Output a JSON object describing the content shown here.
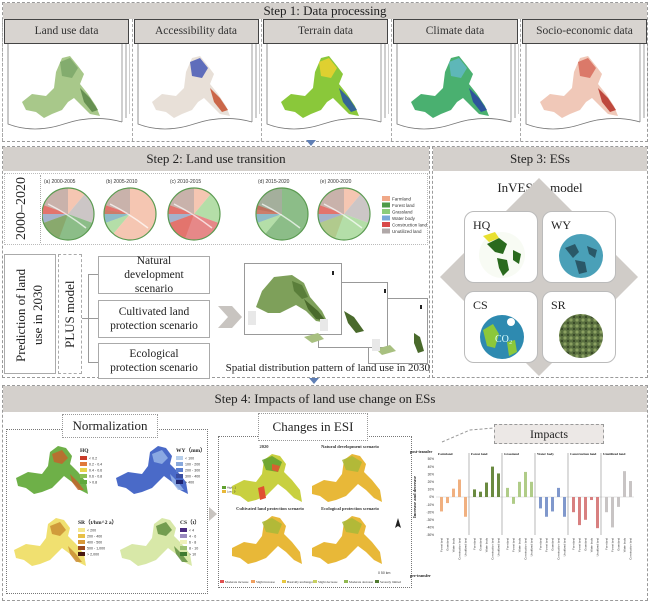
{
  "step1": {
    "title": "Step 1: Data processing",
    "panels": [
      {
        "label": "Land use data",
        "map": "land-use-map"
      },
      {
        "label": "Accessibility data",
        "map": "accessibility-map"
      },
      {
        "label": "Terrain data",
        "map": "terrain-map"
      },
      {
        "label": "Climate data",
        "map": "climate-map"
      },
      {
        "label": "Socio-economic data",
        "map": "socio-economic-map"
      }
    ]
  },
  "step2": {
    "title": "Step 2: Land use transition",
    "period_label": "2000–2020",
    "chord_diagrams": [
      {
        "title": "(a) 2000-2005"
      },
      {
        "title": "(b) 2005-2010"
      },
      {
        "title": "(c) 2010-2015"
      },
      {
        "title": "(d) 2015-2020"
      },
      {
        "title": "(e) 2000-2020"
      }
    ],
    "chord_legend": [
      {
        "label": "Farmland",
        "color": "#f0a888"
      },
      {
        "label": "Forest land",
        "color": "#4e9a48"
      },
      {
        "label": "Grassland",
        "color": "#8ccc7a"
      },
      {
        "label": "Water body",
        "color": "#7aa8d8"
      },
      {
        "label": "Construction land",
        "color": "#d84848"
      },
      {
        "label": "Unutilized land",
        "color": "#b0a8a8"
      }
    ],
    "prediction_label": "Prediction of land use in 2030",
    "model_label": "PLUS model",
    "scenarios": [
      "Natural development scenario",
      "Cultivated land protection scenario",
      "Ecological protection scenario"
    ],
    "spatial_caption": "Spatial distribution pattern of land use in 2030"
  },
  "step3": {
    "title": "Step 3: ESs",
    "model_label": "InVEST   model",
    "services": [
      {
        "code": "HQ",
        "icon": "habitat-globe-icon"
      },
      {
        "code": "WY",
        "icon": "water-globe-icon"
      },
      {
        "code": "CS",
        "icon": "carbon-globe-icon",
        "overlay": "CO₂"
      },
      {
        "code": "SR",
        "icon": "soil-texture-icon"
      }
    ]
  },
  "step4": {
    "title": "Step 4: Impacts of land use change on ESs",
    "normalization": {
      "title": "Normalization",
      "maps": [
        {
          "title": "HQ",
          "legend": [
            "< 0.2",
            "0.2 - 0.4",
            "0.4 - 0.6",
            "0.6 - 0.8",
            "> 0.8"
          ],
          "colors": [
            "#c83c2a",
            "#e07a3a",
            "#e8d44a",
            "#8cc052",
            "#5ea83a"
          ]
        },
        {
          "title": "WY（mm）",
          "legend": [
            "< 100",
            "100 - 200",
            "200 - 300",
            "300 - 400",
            "> 400"
          ],
          "colors": [
            "#b8d0ec",
            "#88a8dc",
            "#5a7ed0",
            "#3a4ea0",
            "#1e2470"
          ]
        },
        {
          "title": "SR（t/hm^2 a）",
          "legend": [
            "< 200",
            "200 - 400",
            "400 - 500",
            "500 - 1,000",
            "> 2,000"
          ],
          "colors": [
            "#f4e890",
            "#e8c048",
            "#d89838",
            "#9a4a20",
            "#4a1a10"
          ]
        },
        {
          "title": "CS（t）",
          "legend": [
            "< 4",
            "4 - 6",
            "6 - 8",
            "8 - 10",
            "> 10"
          ],
          "colors": [
            "#4a2a80",
            "#9a8ac0",
            "#eef0b8",
            "#9cc070",
            "#3e7a30"
          ]
        }
      ]
    },
    "esi": {
      "title": "Changes in ESI",
      "maps": [
        {
          "title": "2020"
        },
        {
          "title": "Natural development scenario"
        },
        {
          "title": "Cultivated land protection scenario"
        },
        {
          "title": "Ecological protection scenario"
        }
      ],
      "legend_2020": [
        "High : 1",
        "Low : 0"
      ],
      "bottom_legend": [
        {
          "label": "Moderate increase",
          "color": "#e05050"
        },
        {
          "label": "Slight increase",
          "color": "#f0a060"
        },
        {
          "label": "Basically unchanged",
          "color": "#e8c840"
        },
        {
          "label": "Slight decrease",
          "color": "#c8d060"
        },
        {
          "label": "Moderate decrease",
          "color": "#90b850"
        },
        {
          "label": "Severely limited",
          "color": "#507a30"
        }
      ],
      "scale_label": "0   50 km"
    },
    "impacts": {
      "title": "Impacts"
    }
  },
  "chart_data": {
    "type": "bar",
    "title": "Impacts",
    "ylabel": "Increase and decrease",
    "xlabel_top": "post-transfer",
    "xlabel_bottom": "pre-transfer",
    "ylim": [
      -50,
      50
    ],
    "yticks": [
      "-50%",
      "-40%",
      "-30%",
      "-20%",
      "-10%",
      "0%",
      "10%",
      "20%",
      "30%",
      "40%",
      "50%"
    ],
    "groups": [
      {
        "name": "Farmland",
        "color": "#f0b080",
        "categories": [
          "Forest land",
          "Grassland",
          "Water body",
          "Construction land",
          "Unutilized land"
        ],
        "values": [
          -19,
          -8,
          11,
          23,
          -26
        ]
      },
      {
        "name": "Forest land",
        "color": "#6a8a40",
        "categories": [
          "Farmland",
          "Grassland",
          "Water body",
          "Construction land",
          "Unutilized land"
        ],
        "values": [
          10,
          7,
          19,
          40,
          31
        ]
      },
      {
        "name": "Grassland",
        "color": "#b0cc88",
        "categories": [
          "Farmland",
          "Forest land",
          "Water body",
          "Construction land",
          "Unutilized land"
        ],
        "values": [
          12,
          -9,
          20,
          33,
          20
        ]
      },
      {
        "name": "Water body",
        "color": "#8098cc",
        "categories": [
          "Farmland",
          "Forest land",
          "Grassland",
          "Construction land",
          "Unutilized land"
        ],
        "values": [
          -15,
          -26,
          -19,
          12,
          -26
        ]
      },
      {
        "name": "Construction land",
        "color": "#d88080",
        "categories": [
          "Farmland",
          "Forest land",
          "Grassland",
          "Water body",
          "Unutilized land"
        ],
        "values": [
          -20,
          -37,
          -30,
          -4,
          -41
        ]
      },
      {
        "name": "Unutilized land",
        "color": "#c8c4c4",
        "categories": [
          "Farmland",
          "Forest land",
          "Grassland",
          "Water body",
          "Construction land"
        ],
        "values": [
          -20,
          -40,
          -13,
          34,
          21
        ]
      }
    ]
  }
}
